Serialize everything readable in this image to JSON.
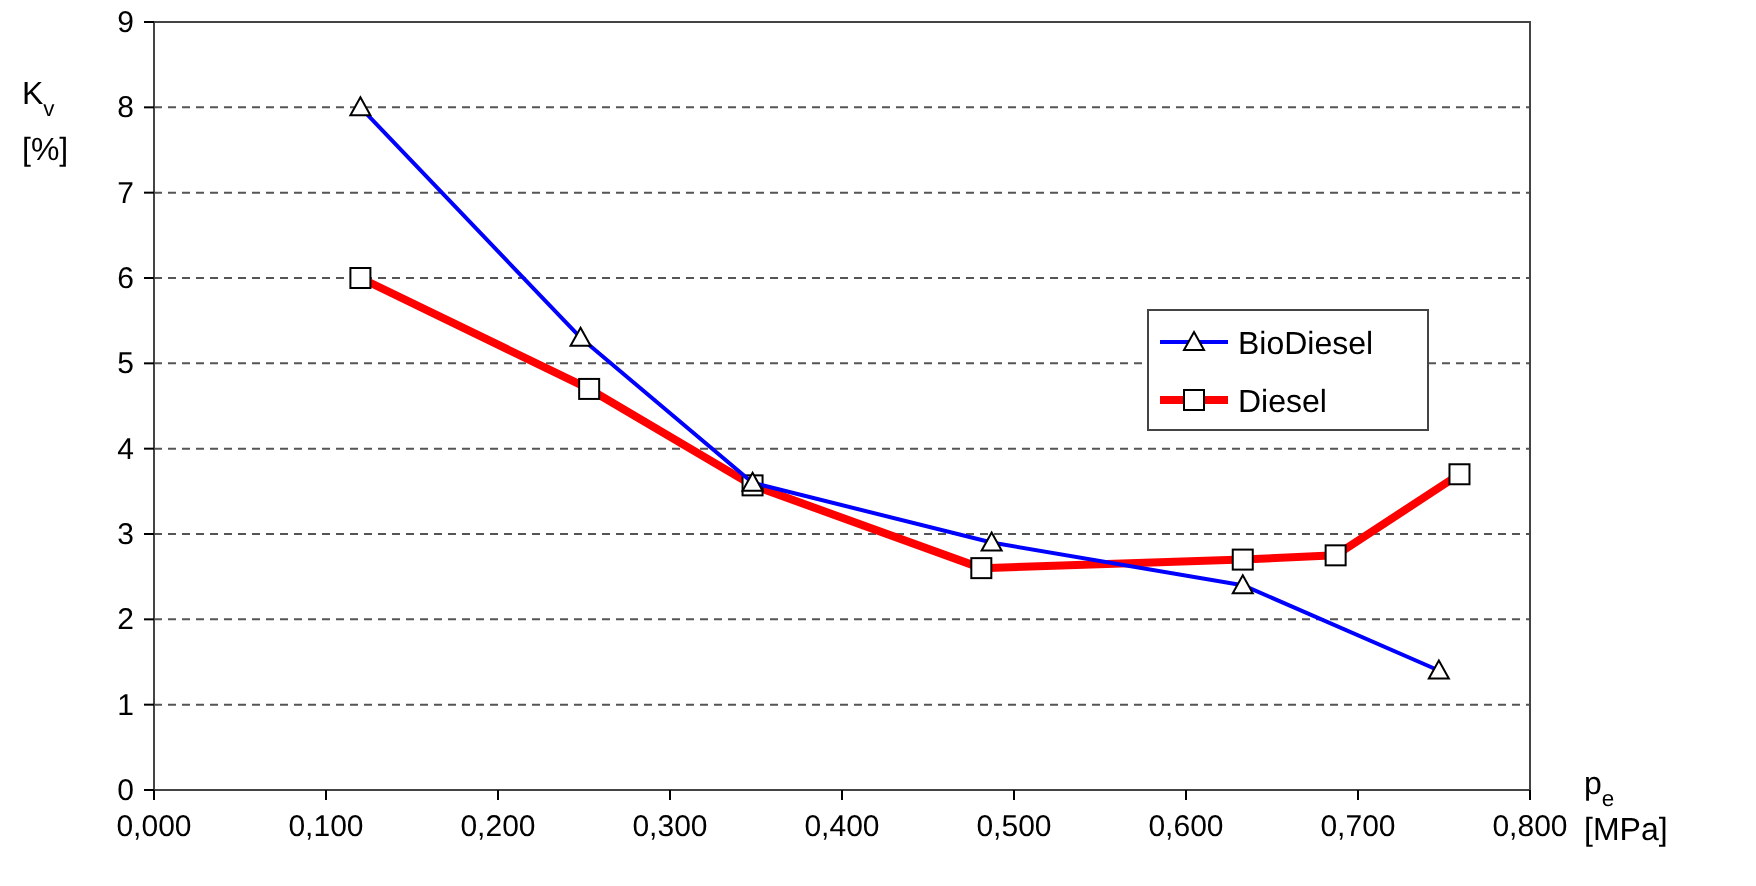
{
  "chart_data": {
    "type": "line",
    "xlabel": "p$_{e}$ [MPa]",
    "ylabel": "K$_{v}$ [%]",
    "xlim": [
      0,
      0.8
    ],
    "ylim": [
      0,
      9
    ],
    "xticks": [
      {
        "value": 0,
        "label": "0,000"
      },
      {
        "value": 0.1,
        "label": "0,100"
      },
      {
        "value": 0.2,
        "label": "0,200"
      },
      {
        "value": 0.3,
        "label": "0,300"
      },
      {
        "value": 0.4,
        "label": "0,400"
      },
      {
        "value": 0.5,
        "label": "0,500"
      },
      {
        "value": 0.6,
        "label": "0,600"
      },
      {
        "value": 0.7,
        "label": "0,700"
      },
      {
        "value": 0.8,
        "label": "0,800"
      }
    ],
    "yticks": [
      0,
      1,
      2,
      3,
      4,
      5,
      6,
      7,
      8,
      9
    ],
    "grid": "y",
    "legend": "right",
    "series": [
      {
        "name": "BioDiesel",
        "color": "#0000ff",
        "marker": "triangle",
        "x": [
          0.12,
          0.248,
          0.348,
          0.487,
          0.633,
          0.747
        ],
        "values": [
          8,
          5.3,
          3.6,
          2.9,
          2.4,
          1.4
        ]
      },
      {
        "name": "Diesel",
        "color": "#ff0000",
        "marker": "square",
        "x": [
          0.12,
          0.253,
          0.348,
          0.481,
          0.633,
          0.687,
          0.759
        ],
        "values": [
          6,
          4.7,
          3.57,
          2.6,
          2.7,
          2.75,
          3.7
        ]
      }
    ]
  }
}
